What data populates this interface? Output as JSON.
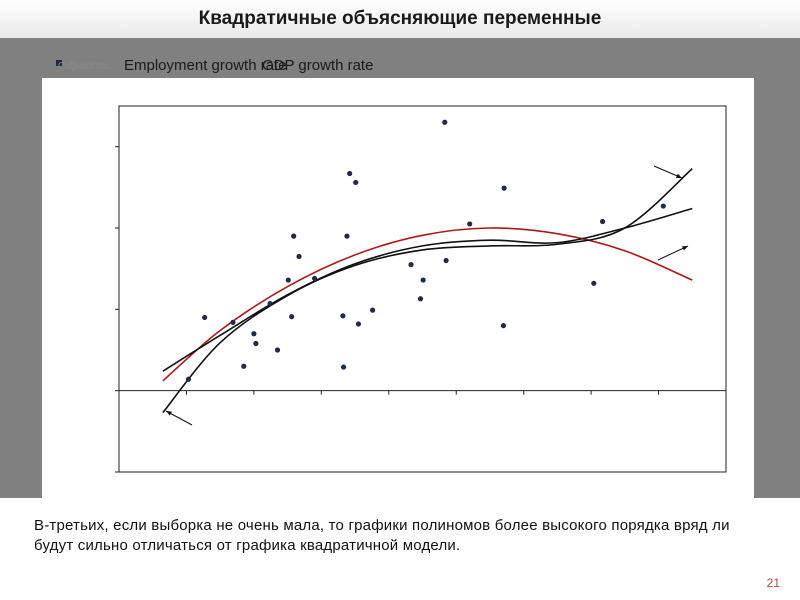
{
  "slide": {
    "title": "Квадратичные объясняющие переменные",
    "body_text": "В-третьих, если выборка не очень мала, то графики полиномов более высокого порядка вряд ли будут сильно отличаться от графика квадратичной модели.",
    "page_number": "21"
  },
  "legend": {
    "small_label_1": "Cubic",
    "small_label_2": "Quadratic",
    "series_label_1": "Employment growth rate",
    "series_label_2": "GDP growth rate"
  },
  "colors": {
    "points": "#1f2a44",
    "quadratic_curve": "#b01818",
    "other_curves": "#111111",
    "panel": "#808080"
  },
  "chart_data": {
    "type": "scatter",
    "title": "",
    "xlabel": "",
    "ylabel": "",
    "xlim": [
      0,
      9
    ],
    "ylim": [
      -1,
      3.5
    ],
    "grid": false,
    "legend_position": "top-left",
    "points": [
      [
        1.03,
        0.14
      ],
      [
        1.27,
        0.9
      ],
      [
        1.69,
        0.84
      ],
      [
        1.85,
        0.3
      ],
      [
        2.0,
        0.7
      ],
      [
        2.03,
        0.58
      ],
      [
        2.24,
        1.07
      ],
      [
        2.35,
        0.5
      ],
      [
        2.51,
        1.36
      ],
      [
        2.56,
        0.91
      ],
      [
        2.59,
        1.9
      ],
      [
        2.67,
        1.65
      ],
      [
        2.9,
        1.38
      ],
      [
        3.32,
        0.92
      ],
      [
        3.33,
        0.29
      ],
      [
        3.38,
        1.9
      ],
      [
        3.42,
        2.67
      ],
      [
        3.55,
        0.82
      ],
      [
        3.51,
        2.56
      ],
      [
        3.76,
        0.99
      ],
      [
        4.33,
        1.55
      ],
      [
        4.47,
        1.13
      ],
      [
        4.51,
        1.36
      ],
      [
        4.85,
        1.6
      ],
      [
        4.83,
        3.3
      ],
      [
        5.2,
        2.05
      ],
      [
        5.71,
        2.49
      ],
      [
        5.7,
        0.8
      ],
      [
        7.04,
        1.32
      ],
      [
        7.17,
        2.08
      ],
      [
        8.07,
        2.27
      ]
    ],
    "series": [
      {
        "fit": "quadratic",
        "x": [
          0.65,
          1.5,
          2.5,
          3.5,
          4.5,
          5.5,
          6.5,
          7.5,
          8.5
        ],
        "y": [
          0.12,
          0.74,
          1.28,
          1.67,
          1.91,
          2.0,
          1.93,
          1.72,
          1.36
        ]
      },
      {
        "fit": "linear-type",
        "x": [
          0.65,
          1.5,
          2.5,
          3.5,
          4.5,
          5.5,
          6.5,
          7.5,
          8.5
        ],
        "y": [
          0.24,
          0.68,
          1.18,
          1.56,
          1.78,
          1.85,
          1.82,
          2.0,
          2.24
        ]
      },
      {
        "fit": "higher-order",
        "x": [
          0.65,
          1.5,
          2.5,
          3.5,
          4.5,
          5.5,
          6.5,
          7.5,
          8.5
        ],
        "y": [
          -0.27,
          0.59,
          1.17,
          1.54,
          1.73,
          1.78,
          1.8,
          2.0,
          2.73
        ]
      }
    ]
  }
}
